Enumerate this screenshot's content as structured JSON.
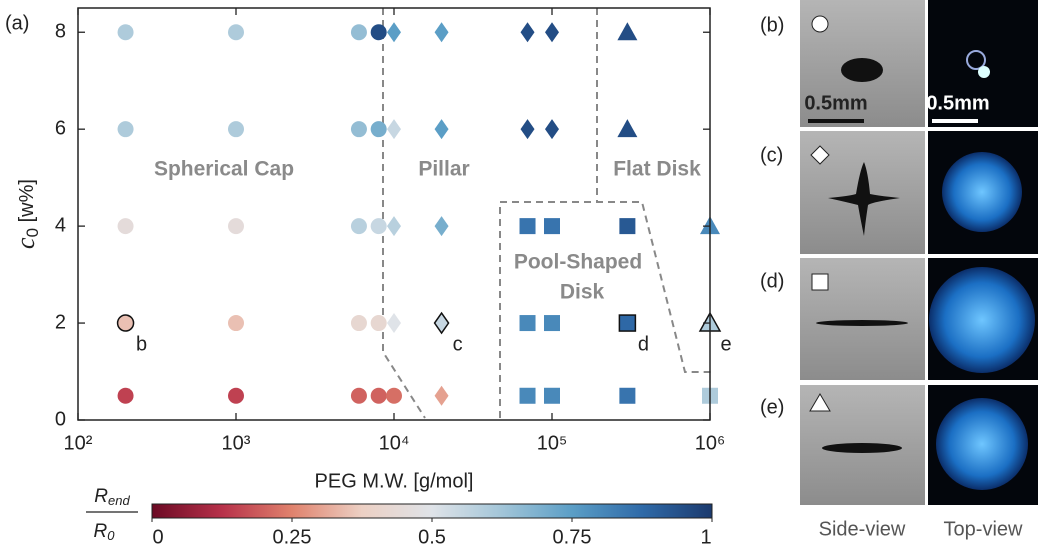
{
  "chart_data": {
    "type": "scatter",
    "panel_label": "(a)",
    "xlabel": "PEG M.W. [g/mol]",
    "ylabel": {
      "text": "c",
      "sub": "0",
      "rest": " [w%]"
    },
    "xscale": "log",
    "xlim": [
      100,
      1000000
    ],
    "xticks": [
      {
        "value": 100,
        "label": "10²"
      },
      {
        "value": 1000,
        "label": "10³"
      },
      {
        "value": 10000,
        "label": "10⁴"
      },
      {
        "value": 100000,
        "label": "10⁵"
      },
      {
        "value": 1000000,
        "label": "10⁶"
      }
    ],
    "ylim": [
      0,
      8.5
    ],
    "yticks": [
      0,
      2,
      4,
      6,
      8
    ],
    "series": [
      {
        "marker": "circle",
        "x": [
          200,
          1000,
          6000,
          8000,
          200,
          1000,
          6000,
          8000,
          200,
          1000,
          6000,
          8000,
          200,
          1000,
          6000,
          8000,
          200,
          1000,
          6000,
          8000,
          10000
        ],
        "y": [
          8,
          8,
          8,
          8,
          6,
          6,
          6,
          6,
          4,
          4,
          4,
          4,
          2,
          2,
          2,
          2,
          0.5,
          0.5,
          0.5,
          0.5,
          0.5
        ],
        "c": [
          0.6,
          0.6,
          0.65,
          0.95,
          0.6,
          0.6,
          0.65,
          0.7,
          0.45,
          0.45,
          0.58,
          0.55,
          0.35,
          0.35,
          0.42,
          0.42,
          0.15,
          0.15,
          0.2,
          0.2,
          0.22
        ]
      },
      {
        "marker": "diamond",
        "x": [
          10000,
          10000,
          10000,
          10000,
          20000,
          20000,
          20000,
          20000,
          20000,
          70000,
          70000,
          100000,
          100000
        ],
        "y": [
          8,
          6,
          4,
          2,
          8,
          6,
          4,
          2,
          0.5,
          8,
          6,
          8,
          6
        ],
        "c": [
          0.75,
          0.55,
          0.58,
          0.5,
          0.75,
          0.75,
          0.7,
          0.55,
          0.3,
          0.95,
          0.95,
          0.95,
          0.95
        ]
      },
      {
        "marker": "square",
        "x": [
          70000,
          70000,
          70000,
          100000,
          100000,
          100000,
          300000,
          300000,
          300000,
          1000000
        ],
        "y": [
          4,
          2,
          0.5,
          4,
          2,
          0.5,
          4,
          2,
          0.5,
          0.5
        ],
        "c": [
          0.85,
          0.8,
          0.8,
          0.85,
          0.8,
          0.8,
          0.92,
          0.88,
          0.85,
          0.6
        ]
      },
      {
        "marker": "triangle",
        "x": [
          300000,
          300000,
          1000000,
          1000000
        ],
        "y": [
          8,
          6,
          4,
          2
        ],
        "c": [
          0.95,
          0.95,
          0.8,
          0.6
        ]
      }
    ],
    "annotations": [
      {
        "text": "b",
        "x": 200,
        "y": 2
      },
      {
        "text": "c",
        "x": 20000,
        "y": 2
      },
      {
        "text": "d",
        "x": 300000,
        "y": 2
      },
      {
        "text": "e",
        "x": 1000000,
        "y": 2
      }
    ],
    "regions": [
      [
        "Spherical Cap"
      ],
      [
        "Pillar"
      ],
      [
        "Flat Disk"
      ],
      [
        "Pool-Shaped",
        "Disk"
      ]
    ],
    "colormap": [
      "#6b0a24",
      "#b7314a",
      "#e0826d",
      "#ecd0c4",
      "#dfe3e8",
      "#a2c5d8",
      "#5b9ec6",
      "#2f6aa8",
      "#1b3a6e"
    ],
    "clim": [
      0,
      1
    ],
    "cticks": [
      0,
      0.25,
      0.5,
      0.75,
      1
    ],
    "colorbar_label": {
      "num": "R",
      "num_sub": "end",
      "den": "R",
      "den_sub": "0"
    }
  },
  "panels": [
    "(b)",
    "(c)",
    "(d)",
    "(e)"
  ],
  "scale_bar": "0.5mm",
  "views": [
    "Side-view",
    "Top-view"
  ]
}
